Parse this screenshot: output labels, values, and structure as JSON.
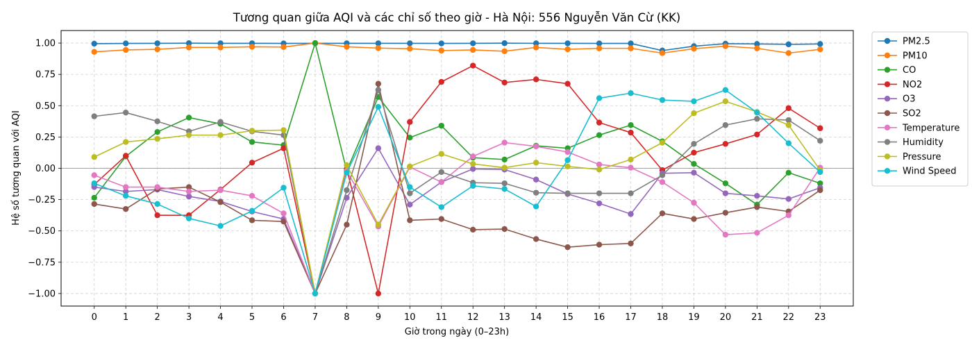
{
  "chart_data": {
    "type": "line",
    "title": "Tương quan giữa AQI và các chỉ số theo giờ - Hà Nội: 556 Nguyễn Văn Cừ (KK)",
    "xlabel": "Giờ trong ngày (0–23h)",
    "ylabel": "Hệ số tương quan với AQI",
    "x": [
      0,
      1,
      2,
      3,
      4,
      5,
      6,
      7,
      8,
      9,
      10,
      11,
      12,
      13,
      14,
      15,
      16,
      17,
      18,
      19,
      20,
      21,
      22,
      23
    ],
    "xlim": [
      -1.05,
      24.05
    ],
    "ylim": [
      -1.1,
      1.1
    ],
    "yticks": [
      1.0,
      0.75,
      0.5,
      0.25,
      0.0,
      -0.25,
      -0.5,
      -0.75,
      -1.0
    ],
    "ytick_labels": [
      "1.00",
      "0.75",
      "0.50",
      "0.25",
      "0.00",
      "−0.25",
      "−0.50",
      "−0.75",
      "−1.00"
    ],
    "grid": true,
    "zero_line": true,
    "legend_position": "outside-top-right",
    "series": [
      {
        "name": "PM2.5",
        "color": "#1f77b4",
        "values": [
          0.995,
          0.997,
          0.998,
          0.999,
          0.998,
          0.998,
          0.997,
          0.998,
          0.998,
          0.998,
          0.998,
          0.997,
          0.998,
          0.999,
          0.998,
          0.998,
          0.997,
          0.997,
          0.94,
          0.975,
          0.995,
          0.993,
          0.99,
          0.993
        ]
      },
      {
        "name": "PM10",
        "color": "#ff7f0e",
        "values": [
          0.93,
          0.945,
          0.95,
          0.965,
          0.965,
          0.97,
          0.968,
          1.0,
          0.97,
          0.96,
          0.955,
          0.94,
          0.945,
          0.935,
          0.965,
          0.95,
          0.958,
          0.958,
          0.92,
          0.955,
          0.975,
          0.958,
          0.92,
          0.95
        ]
      },
      {
        "name": "CO",
        "color": "#2ca02c",
        "values": [
          -0.235,
          0.095,
          0.29,
          0.405,
          0.355,
          0.21,
          0.185,
          1.0,
          -0.02,
          0.57,
          0.245,
          0.34,
          0.085,
          0.07,
          0.18,
          0.16,
          0.265,
          0.345,
          0.215,
          0.035,
          -0.12,
          -0.29,
          -0.035,
          -0.12
        ]
      },
      {
        "name": "NO2",
        "color": "#d62728",
        "values": [
          -0.13,
          0.1,
          -0.375,
          -0.375,
          -0.17,
          0.045,
          0.16,
          -1.0,
          -0.005,
          -1.0,
          0.37,
          0.69,
          0.82,
          0.685,
          0.71,
          0.675,
          0.365,
          0.285,
          -0.015,
          0.125,
          0.195,
          0.27,
          0.48,
          0.32
        ]
      },
      {
        "name": "O3",
        "color": "#9467bd",
        "values": [
          -0.15,
          -0.185,
          -0.17,
          -0.225,
          -0.265,
          -0.345,
          -0.405,
          -1.0,
          -0.235,
          0.16,
          -0.29,
          -0.11,
          -0.005,
          -0.01,
          -0.09,
          -0.205,
          -0.28,
          -0.365,
          -0.04,
          -0.035,
          -0.2,
          -0.22,
          -0.245,
          -0.155
        ]
      },
      {
        "name": "SO2",
        "color": "#8c564b",
        "values": [
          -0.285,
          -0.325,
          -0.165,
          -0.15,
          -0.27,
          -0.415,
          -0.425,
          -1.0,
          -0.45,
          0.675,
          -0.415,
          -0.405,
          -0.49,
          -0.485,
          -0.565,
          -0.63,
          -0.61,
          -0.6,
          -0.36,
          -0.405,
          -0.355,
          -0.31,
          -0.345,
          -0.175
        ]
      },
      {
        "name": "Temperature",
        "color": "#e377c2",
        "values": [
          -0.055,
          -0.15,
          -0.15,
          -0.185,
          -0.175,
          -0.22,
          -0.36,
          -1.0,
          -0.02,
          -0.465,
          0.01,
          -0.11,
          0.095,
          0.205,
          0.175,
          0.13,
          0.03,
          0.005,
          -0.11,
          -0.275,
          -0.53,
          -0.515,
          -0.375,
          0.005
        ]
      },
      {
        "name": "Humidity",
        "color": "#7f7f7f",
        "values": [
          0.415,
          0.445,
          0.375,
          0.295,
          0.37,
          0.295,
          0.265,
          -1.0,
          -0.175,
          0.625,
          -0.2,
          -0.03,
          -0.115,
          -0.12,
          -0.195,
          -0.2,
          -0.2,
          -0.2,
          -0.055,
          0.195,
          0.345,
          0.395,
          0.385,
          0.22
        ]
      },
      {
        "name": "Pressure",
        "color": "#bcbd22",
        "values": [
          0.09,
          0.21,
          0.235,
          0.265,
          0.265,
          0.3,
          0.305,
          -1.0,
          0.025,
          -0.45,
          0.015,
          0.115,
          0.035,
          0.005,
          0.045,
          0.015,
          -0.01,
          0.07,
          0.205,
          0.44,
          0.535,
          0.45,
          0.345,
          -0.015
        ]
      },
      {
        "name": "Wind Speed",
        "color": "#17becf",
        "values": [
          -0.12,
          -0.22,
          -0.285,
          -0.4,
          -0.46,
          -0.34,
          -0.155,
          -1.0,
          -0.035,
          0.49,
          -0.15,
          -0.31,
          -0.14,
          -0.165,
          -0.305,
          0.065,
          0.56,
          0.6,
          0.545,
          0.535,
          0.625,
          0.445,
          0.2,
          -0.03
        ]
      }
    ]
  }
}
